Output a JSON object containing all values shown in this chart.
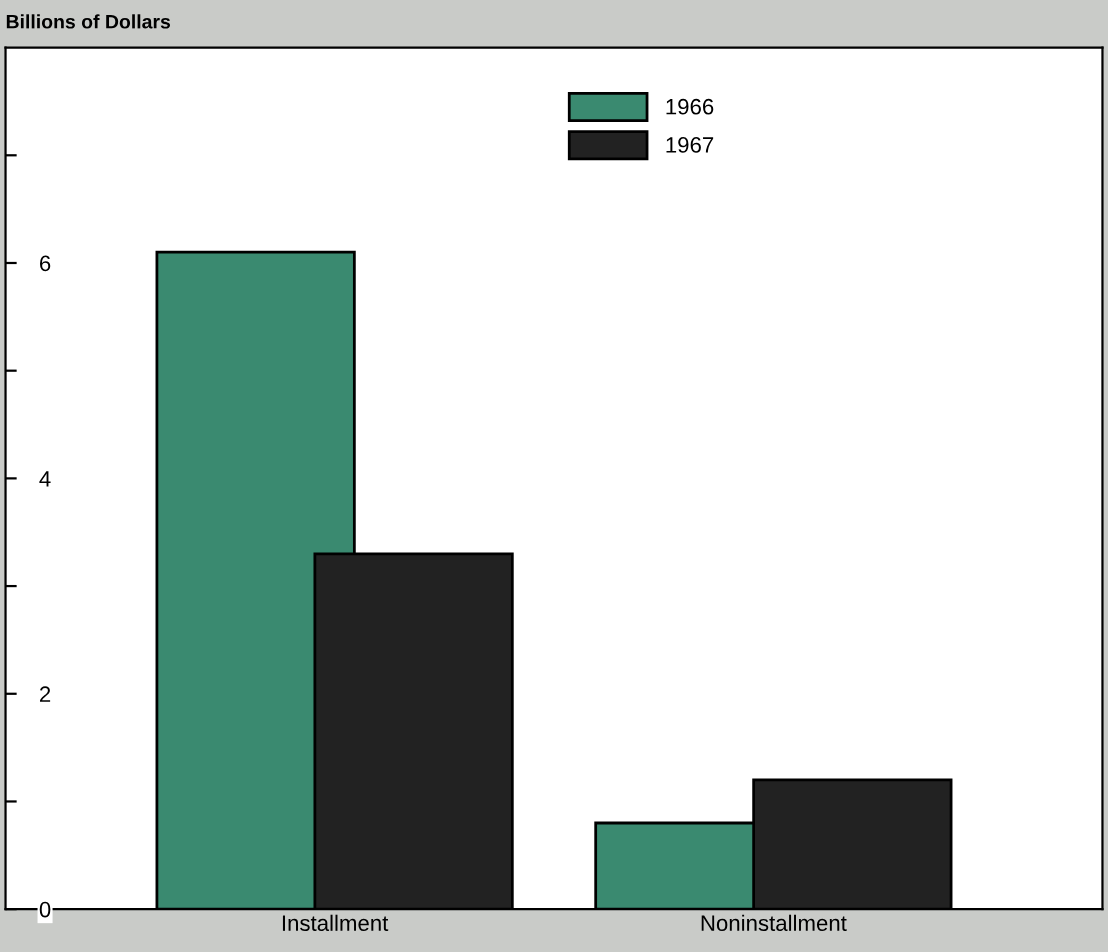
{
  "chart_data": {
    "type": "bar",
    "ylabel": "Billions of Dollars",
    "categories": [
      "Installment",
      "Noninstallment"
    ],
    "series": [
      {
        "name": "1966",
        "color": "#3a8a70",
        "values": [
          6.1,
          0.8
        ]
      },
      {
        "name": "1967",
        "color": "#222222",
        "values": [
          3.3,
          1.2
        ]
      }
    ],
    "ylim": [
      0,
      8
    ],
    "yticks": [
      0,
      {
        "value": 1,
        "label": null
      },
      2,
      {
        "value": 3,
        "label": null
      },
      4,
      {
        "value": 5,
        "label": null
      },
      6,
      {
        "value": 7,
        "label": null
      }
    ],
    "legend": "top"
  }
}
